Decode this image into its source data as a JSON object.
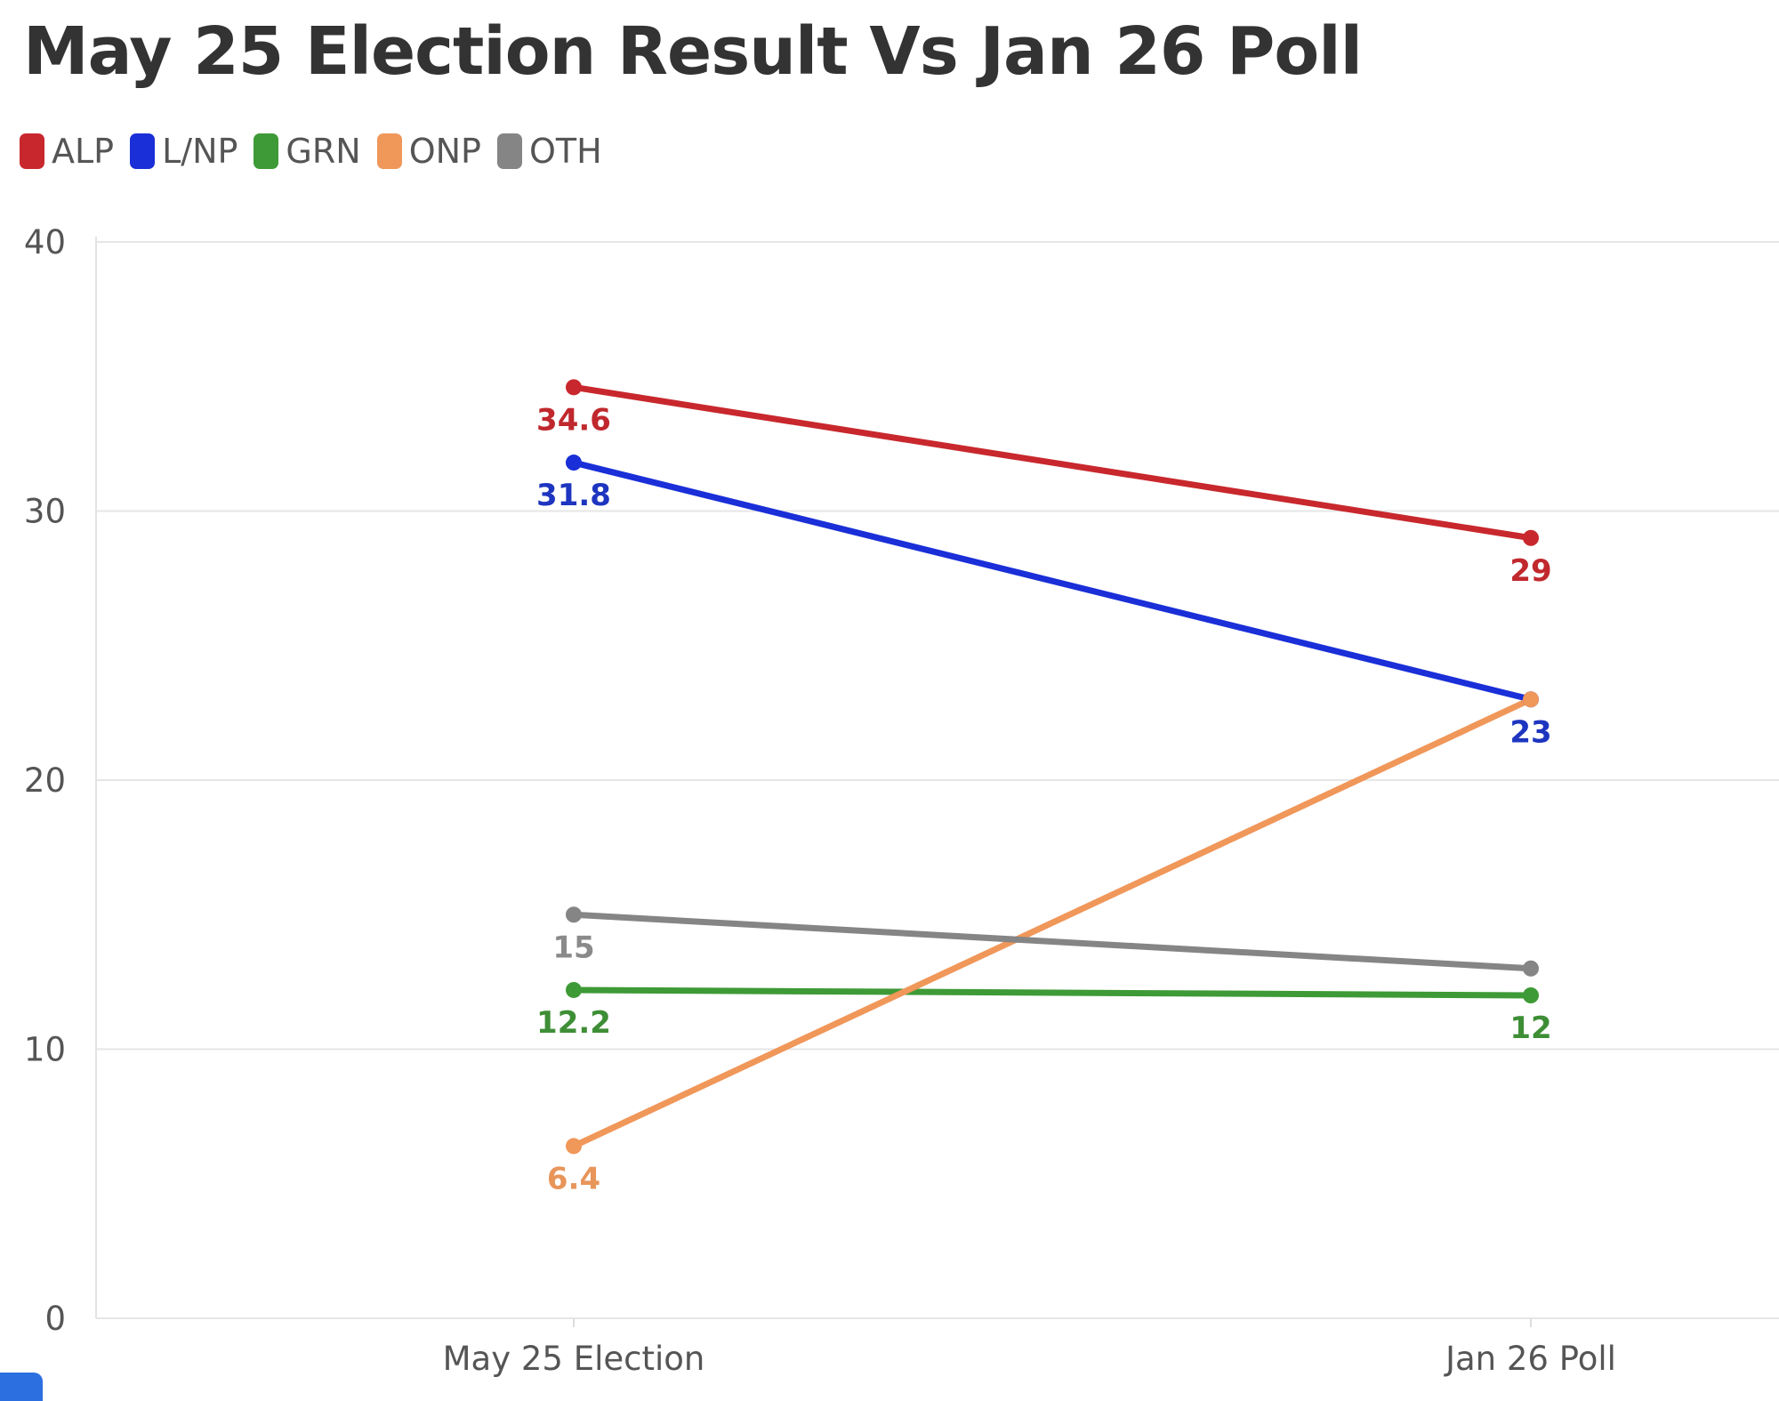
{
  "chart_data": {
    "type": "line",
    "title": "May 25 Election Result Vs Jan 26 Poll",
    "categories": [
      "May 25 Election",
      "Jan 26 Poll"
    ],
    "ylim": [
      0,
      40
    ],
    "yticks": [
      0,
      10,
      20,
      30,
      40
    ],
    "grid": true,
    "legend_position": "top-left",
    "series": [
      {
        "name": "ALP",
        "color": "#c8282d",
        "values": [
          34.6,
          29
        ]
      },
      {
        "name": "L/NP",
        "color": "#1a2fd8",
        "values": [
          31.8,
          23
        ]
      },
      {
        "name": "GRN",
        "color": "#3e9a36",
        "values": [
          12.2,
          12
        ]
      },
      {
        "name": "ONP",
        "color": "#f0975a",
        "values": [
          6.4,
          23
        ]
      },
      {
        "name": "OTH",
        "color": "#858585",
        "values": [
          15,
          13
        ]
      }
    ],
    "data_labels": [
      [
        "34.6",
        "29"
      ],
      [
        "31.8",
        "23"
      ],
      [
        "12.2",
        "12"
      ],
      [
        "6.4",
        ""
      ],
      [
        "15",
        ""
      ]
    ]
  },
  "label_colors": {
    "ALP": "#c0282d",
    "L/NP": "#1e35c0",
    "GRN": "#3e8e36",
    "ONP": "#e8955a",
    "OTH": "#8a8a8a"
  },
  "corner_tab_color": "#2b6fe0"
}
